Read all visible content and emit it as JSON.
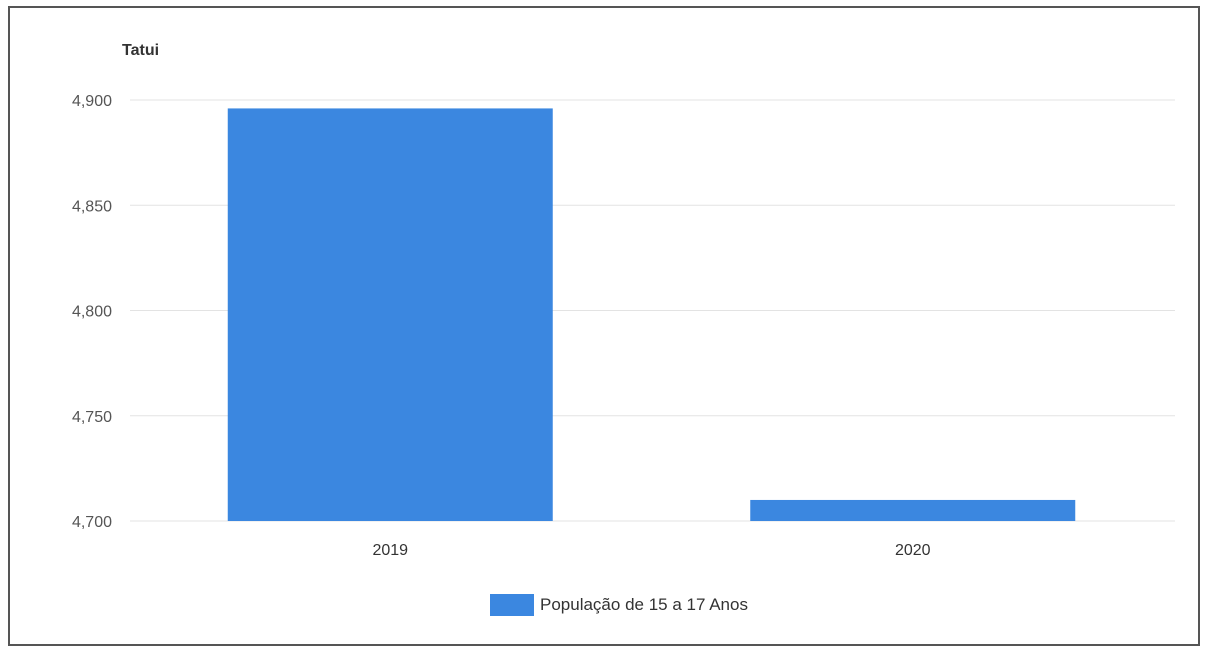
{
  "chart_data": {
    "type": "bar",
    "title": "Tatui",
    "xlabel": "",
    "ylabel": "",
    "categories": [
      "2019",
      "2020"
    ],
    "series": [
      {
        "name": "População de 15 a 17 Anos",
        "values": [
          4896,
          4710
        ],
        "color": "#3b87e0"
      }
    ],
    "ylim": [
      4700,
      4900
    ],
    "yticks": [
      4700,
      4750,
      4800,
      4850,
      4900
    ],
    "ytick_labels": [
      "4,700",
      "4,750",
      "4,800",
      "4,850",
      "4,900"
    ],
    "grid": true,
    "legend_position": "bottom"
  }
}
